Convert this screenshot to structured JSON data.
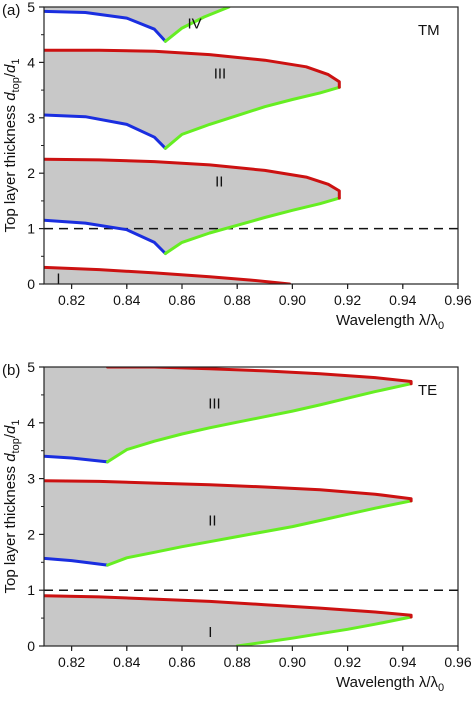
{
  "chart_data": [
    {
      "panel_label": "(a)",
      "polarization": "TM",
      "type": "area",
      "xlim": [
        0.81,
        0.96
      ],
      "ylim": [
        0,
        5
      ],
      "x_ticks": [
        0.82,
        0.84,
        0.86,
        0.88,
        0.9,
        0.92,
        0.94,
        0.96
      ],
      "x_tick_labels": [
        "0.82",
        "0.84",
        "0.86",
        "0.88",
        "0.90",
        "0.92",
        "0.94",
        "0.96"
      ],
      "y_ticks": [
        0,
        1,
        2,
        3,
        4,
        5
      ],
      "y_tick_labels": [
        "0",
        "1",
        "2",
        "3",
        "4",
        "5"
      ],
      "ylabel_prefix": "Top layer thickness ",
      "ylabel_var": "d",
      "ylabel_sub": "top",
      "ylabel_slash": "/",
      "ylabel_var2": "d",
      "ylabel_sub2": "1",
      "xlabel_text": "Wavelength λ/λ",
      "xlabel_sub": "0",
      "dashed_line_y": 1,
      "band_fill_color": "#c8c8c8",
      "colors": {
        "red": "#cc1111",
        "blue": "#1a2ee0",
        "green": "#66ee22"
      },
      "bands": [
        {
          "label": "I",
          "label_pos": [
            0.8145,
            0.1
          ],
          "red": [
            [
              0.81,
              0.3
            ],
            [
              0.83,
              0.26
            ],
            [
              0.85,
              0.2
            ],
            [
              0.87,
              0.13
            ],
            [
              0.885,
              0.07
            ],
            [
              0.899,
              0.0
            ]
          ]
        },
        {
          "label": "II",
          "label_pos": [
            0.872,
            1.85
          ],
          "red": [
            [
              0.81,
              2.25
            ],
            [
              0.83,
              2.24
            ],
            [
              0.85,
              2.21
            ],
            [
              0.87,
              2.15
            ],
            [
              0.89,
              2.05
            ],
            [
              0.905,
              1.93
            ],
            [
              0.913,
              1.8
            ],
            [
              0.917,
              1.68
            ],
            [
              0.917,
              1.55
            ]
          ],
          "blue": [
            [
              0.81,
              1.15
            ],
            [
              0.825,
              1.1
            ],
            [
              0.84,
              0.98
            ],
            [
              0.85,
              0.75
            ],
            [
              0.854,
              0.55
            ]
          ],
          "green": [
            [
              0.854,
              0.55
            ],
            [
              0.86,
              0.75
            ],
            [
              0.87,
              0.92
            ],
            [
              0.88,
              1.06
            ],
            [
              0.89,
              1.2
            ],
            [
              0.9,
              1.33
            ],
            [
              0.91,
              1.45
            ],
            [
              0.917,
              1.55
            ]
          ]
        },
        {
          "label": "III",
          "label_pos": [
            0.8715,
            3.8
          ],
          "red": [
            [
              0.81,
              4.22
            ],
            [
              0.83,
              4.22
            ],
            [
              0.85,
              4.2
            ],
            [
              0.87,
              4.14
            ],
            [
              0.89,
              4.04
            ],
            [
              0.905,
              3.92
            ],
            [
              0.913,
              3.78
            ],
            [
              0.917,
              3.65
            ],
            [
              0.917,
              3.55
            ]
          ],
          "blue": [
            [
              0.81,
              3.05
            ],
            [
              0.825,
              3.02
            ],
            [
              0.84,
              2.88
            ],
            [
              0.85,
              2.65
            ],
            [
              0.854,
              2.45
            ]
          ],
          "green": [
            [
              0.854,
              2.45
            ],
            [
              0.86,
              2.7
            ],
            [
              0.87,
              2.88
            ],
            [
              0.88,
              3.04
            ],
            [
              0.89,
              3.2
            ],
            [
              0.9,
              3.33
            ],
            [
              0.91,
              3.45
            ],
            [
              0.917,
              3.55
            ]
          ]
        },
        {
          "label": "IV",
          "label_pos": [
            0.862,
            4.7
          ],
          "blue": [
            [
              0.81,
              4.92
            ],
            [
              0.825,
              4.9
            ],
            [
              0.84,
              4.8
            ],
            [
              0.85,
              4.6
            ],
            [
              0.854,
              4.38
            ]
          ],
          "green": [
            [
              0.854,
              4.38
            ],
            [
              0.86,
              4.62
            ],
            [
              0.868,
              4.82
            ],
            [
              0.877,
              5.0
            ]
          ]
        }
      ]
    },
    {
      "panel_label": "(b)",
      "polarization": "TE",
      "type": "area",
      "xlim": [
        0.81,
        0.96
      ],
      "ylim": [
        0,
        5
      ],
      "x_ticks": [
        0.82,
        0.84,
        0.86,
        0.88,
        0.9,
        0.92,
        0.94,
        0.96
      ],
      "x_tick_labels": [
        "0.82",
        "0.84",
        "0.86",
        "0.88",
        "0.90",
        "0.92",
        "0.94",
        "0.96"
      ],
      "y_ticks": [
        0,
        1,
        2,
        3,
        4,
        5
      ],
      "y_tick_labels": [
        "0",
        "1",
        "2",
        "3",
        "4",
        "5"
      ],
      "ylabel_prefix": "Top layer thickness ",
      "ylabel_var": "d",
      "ylabel_sub": "top",
      "ylabel_slash": "/",
      "ylabel_var2": "d",
      "ylabel_sub2": "1",
      "xlabel_text": "Wavelength λ/λ",
      "xlabel_sub": "0",
      "dashed_line_y": 1,
      "band_fill_color": "#c8c8c8",
      "colors": {
        "red": "#cc1111",
        "blue": "#1a2ee0",
        "green": "#66ee22"
      },
      "bands": [
        {
          "label": "I",
          "label_pos": [
            0.8695,
            0.25
          ],
          "red": [
            [
              0.81,
              0.9
            ],
            [
              0.83,
              0.88
            ],
            [
              0.85,
              0.84
            ],
            [
              0.87,
              0.8
            ],
            [
              0.89,
              0.74
            ],
            [
              0.91,
              0.68
            ],
            [
              0.93,
              0.61
            ],
            [
              0.943,
              0.55
            ],
            [
              0.943,
              0.52
            ]
          ],
          "green": [
            [
              0.88,
              0.0
            ],
            [
              0.89,
              0.07
            ],
            [
              0.9,
              0.14
            ],
            [
              0.91,
              0.22
            ],
            [
              0.92,
              0.3
            ],
            [
              0.93,
              0.39
            ],
            [
              0.943,
              0.52
            ]
          ]
        },
        {
          "label": "II",
          "label_pos": [
            0.8695,
            2.25
          ],
          "red": [
            [
              0.81,
              2.96
            ],
            [
              0.83,
              2.95
            ],
            [
              0.85,
              2.92
            ],
            [
              0.87,
              2.89
            ],
            [
              0.89,
              2.85
            ],
            [
              0.91,
              2.8
            ],
            [
              0.93,
              2.72
            ],
            [
              0.943,
              2.64
            ],
            [
              0.943,
              2.6
            ]
          ],
          "blue": [
            [
              0.81,
              1.57
            ],
            [
              0.82,
              1.53
            ],
            [
              0.833,
              1.45
            ]
          ],
          "green": [
            [
              0.833,
              1.45
            ],
            [
              0.84,
              1.58
            ],
            [
              0.85,
              1.68
            ],
            [
              0.86,
              1.78
            ],
            [
              0.87,
              1.87
            ],
            [
              0.88,
              1.96
            ],
            [
              0.89,
              2.05
            ],
            [
              0.9,
              2.14
            ],
            [
              0.91,
              2.25
            ],
            [
              0.92,
              2.36
            ],
            [
              0.93,
              2.47
            ],
            [
              0.943,
              2.6
            ]
          ]
        },
        {
          "label": "III",
          "label_pos": [
            0.8695,
            4.35
          ],
          "red": [
            [
              0.833,
              5.0
            ],
            [
              0.85,
              5.0
            ],
            [
              0.87,
              4.97
            ],
            [
              0.89,
              4.93
            ],
            [
              0.91,
              4.88
            ],
            [
              0.93,
              4.81
            ],
            [
              0.943,
              4.74
            ],
            [
              0.943,
              4.7
            ]
          ],
          "blue": [
            [
              0.81,
              3.4
            ],
            [
              0.82,
              3.37
            ],
            [
              0.833,
              3.3
            ]
          ],
          "green": [
            [
              0.833,
              3.3
            ],
            [
              0.84,
              3.52
            ],
            [
              0.85,
              3.67
            ],
            [
              0.86,
              3.8
            ],
            [
              0.87,
              3.91
            ],
            [
              0.88,
              4.01
            ],
            [
              0.89,
              4.11
            ],
            [
              0.9,
              4.21
            ],
            [
              0.91,
              4.32
            ],
            [
              0.92,
              4.44
            ],
            [
              0.93,
              4.56
            ],
            [
              0.943,
              4.7
            ]
          ],
          "left_edge_top": 5.0
        }
      ]
    }
  ]
}
